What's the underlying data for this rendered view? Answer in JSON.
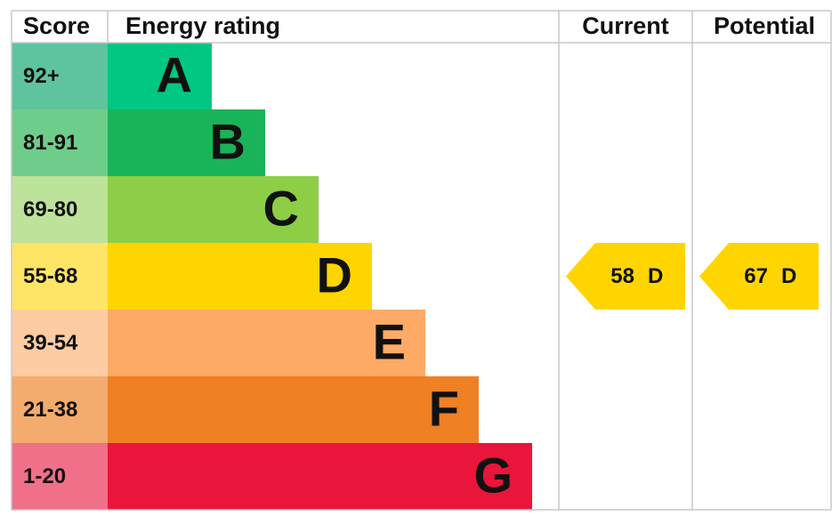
{
  "header": {
    "score": "Score",
    "energy_rating": "Energy rating",
    "current": "Current",
    "potential": "Potential"
  },
  "bands": [
    {
      "score": "92+",
      "letter": "A",
      "color": "#00c781",
      "score_color": "#5ec49e"
    },
    {
      "score": "81-91",
      "letter": "B",
      "color": "#19b459",
      "score_color": "#6fcd8b"
    },
    {
      "score": "69-80",
      "letter": "C",
      "color": "#8dce46",
      "score_color": "#bde39a"
    },
    {
      "score": "55-68",
      "letter": "D",
      "color": "#ffd500",
      "score_color": "#ffe566"
    },
    {
      "score": "39-54",
      "letter": "E",
      "color": "#fcaa65",
      "score_color": "#fdcca3"
    },
    {
      "score": "21-38",
      "letter": "F",
      "color": "#ef8023",
      "score_color": "#f4ab6e"
    },
    {
      "score": "1-20",
      "letter": "G",
      "color": "#e9153b",
      "score_color": "#f0708a"
    }
  ],
  "current": {
    "score": 58,
    "rating": "D"
  },
  "potential": {
    "score": 67,
    "rating": "D"
  }
}
